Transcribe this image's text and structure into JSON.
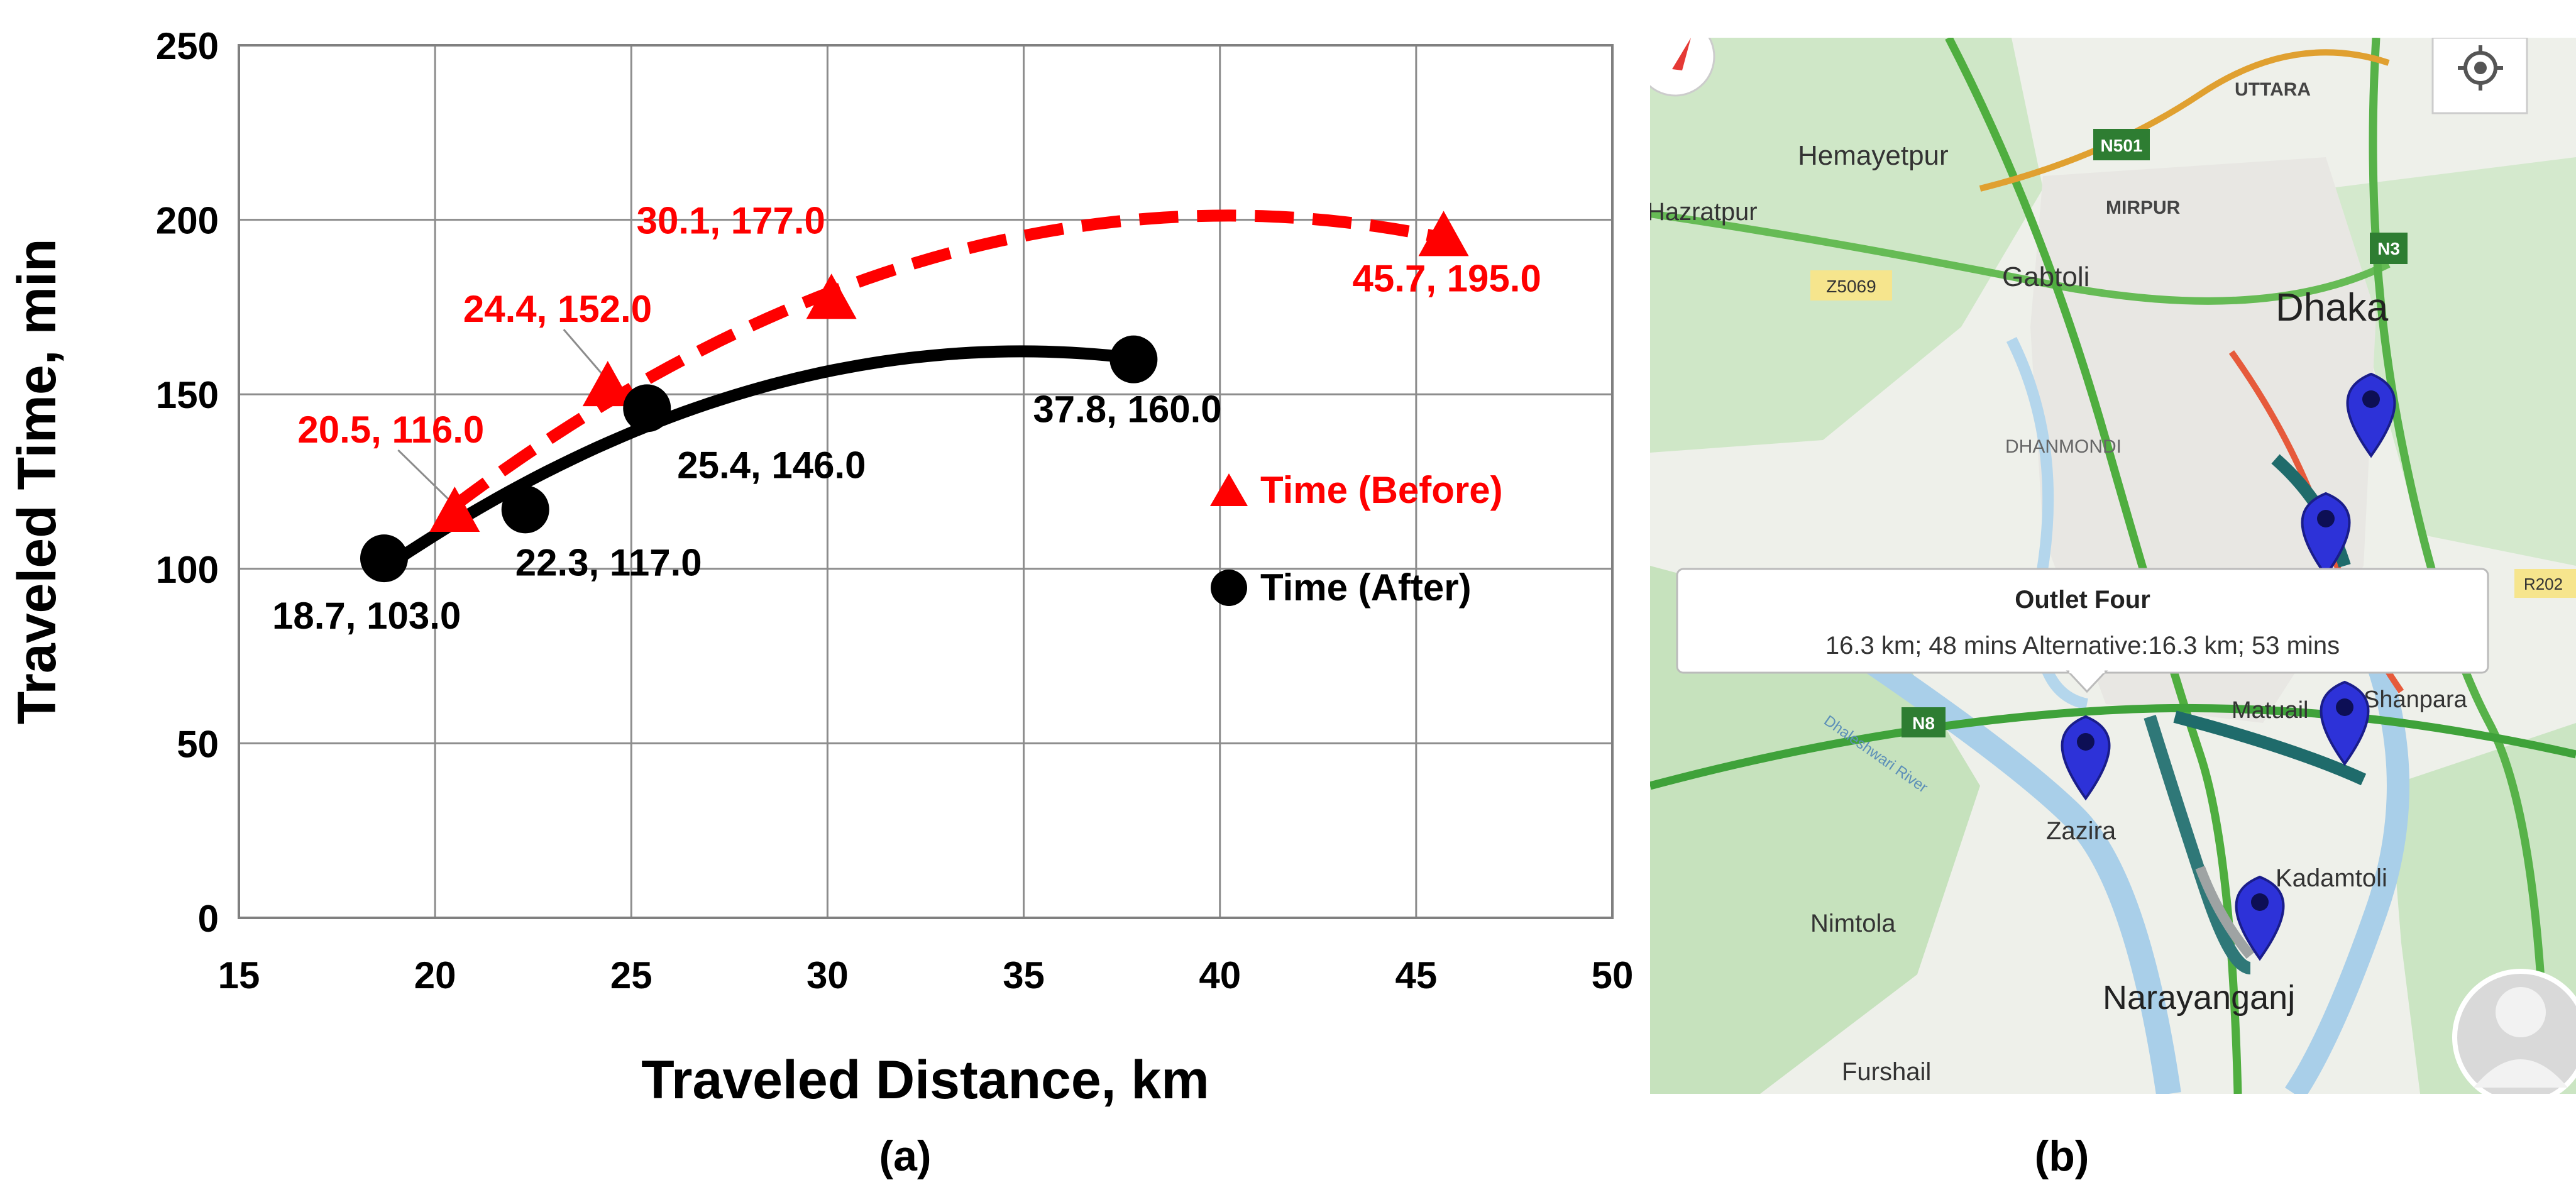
{
  "chart_data": {
    "type": "scatter",
    "xlabel": "Traveled Distance, km",
    "ylabel": "Traveled Time, min",
    "xlim": [
      15,
      50
    ],
    "ylim": [
      0,
      250
    ],
    "xticks": [
      15,
      20,
      25,
      30,
      35,
      40,
      45,
      50
    ],
    "yticks": [
      0,
      50,
      100,
      150,
      200,
      250
    ],
    "grid": true,
    "legend_placement": "right",
    "series": [
      {
        "name": "Time (Before)",
        "marker": "triangle",
        "line": "dashed trendline",
        "color": "#ff0000",
        "points": [
          {
            "x": 20.5,
            "y": 116.0,
            "label": "20.5, 116.0"
          },
          {
            "x": 24.4,
            "y": 152.0,
            "label": "24.4, 152.0"
          },
          {
            "x": 30.1,
            "y": 177.0,
            "label": "30.1, 177.0"
          },
          {
            "x": 45.7,
            "y": 195.0,
            "label": "45.7, 195.0"
          }
        ]
      },
      {
        "name": "Time (After)",
        "marker": "circle",
        "line": "solid trendline",
        "color": "#000000",
        "points": [
          {
            "x": 18.7,
            "y": 103.0,
            "label": "18.7, 103.0"
          },
          {
            "x": 22.3,
            "y": 117.0,
            "label": "22.3, 117.0"
          },
          {
            "x": 25.4,
            "y": 146.0,
            "label": "25.4, 146.0"
          },
          {
            "x": 37.8,
            "y": 160.0,
            "label": "37.8, 160.0"
          }
        ]
      }
    ]
  },
  "panel_a_label": "(a)",
  "panel_b_label": "(b)",
  "map": {
    "place_labels": [
      "UTTARA",
      "Hemayetpur",
      "N501",
      "MIRPUR",
      "Hazratpur",
      "N3",
      "Gabtoli",
      "Z5069",
      "Dhaka",
      "DHANMONDI",
      "N8",
      "Matuail",
      "Shanpara",
      "Zazira",
      "Kadamtoli",
      "Nimtola",
      "Narayanganj",
      "Furshail",
      "Dhaleshwari River",
      "R202"
    ],
    "popup_title": "Outlet Four",
    "popup_text": "16.3 km; 48 mins Alternative:16.3 km; 53 mins"
  }
}
